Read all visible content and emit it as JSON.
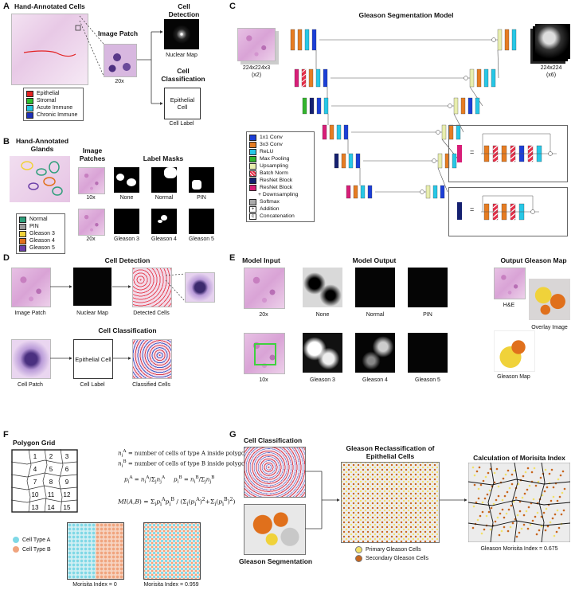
{
  "panels": {
    "A": {
      "label": "A",
      "title": "Hand-Annotated Cells",
      "legend": [
        {
          "name": "Epithelial",
          "color": "#e32222"
        },
        {
          "name": "Stromal",
          "color": "#2ec02e"
        },
        {
          "name": "Acute Immune",
          "color": "#25c7e0"
        },
        {
          "name": "Chronic Immune",
          "color": "#1e2fb8"
        }
      ],
      "image_patch_title": "Image Patch",
      "magnification": "20x",
      "cell_detection_title": "Cell Detection",
      "nuclear_map_label": "Nuclear Map",
      "cell_classification_title": "Cell Classification",
      "epithelial_cell_text": "Epithelial Cell",
      "cell_label": "Cell Label"
    },
    "B": {
      "label": "B",
      "title": "Hand-Annotated Glands",
      "legend": [
        {
          "name": "Normal",
          "color": "#2e9e7a"
        },
        {
          "name": "PIN",
          "color": "#9a9a9a"
        },
        {
          "name": "Gleason 3",
          "color": "#f0d23a"
        },
        {
          "name": "Gleason 4",
          "color": "#e0701c"
        },
        {
          "name": "Gleason 5",
          "color": "#6b3ea8"
        }
      ],
      "image_patches_title": "Image Patches",
      "label_masks_title": "Label Masks",
      "mag_10x": "10x",
      "mag_20x": "20x",
      "mask_labels": [
        "None",
        "Normal",
        "PIN",
        "Gleason 3",
        "Gleason 4",
        "Gleason 5"
      ]
    },
    "C": {
      "label": "C",
      "title": "Gleason Segmentation Model",
      "input_size": "224x224x3",
      "input_count": "(x2)",
      "output_size": "224x224",
      "output_count": "(x6)",
      "legend": [
        {
          "name": "1x1 Conv",
          "color": "#1c3fd6"
        },
        {
          "name": "3x3 Conv",
          "color": "#e67c22"
        },
        {
          "name": "ReLU",
          "color": "#27c7e6"
        },
        {
          "name": "Max Pooling",
          "color": "#33b52d"
        },
        {
          "name": "Upsampling",
          "color": "#e8eeae"
        },
        {
          "name": "Batch Norm",
          "color": "#e8304a"
        },
        {
          "name": "ResNet Block",
          "color": "#152070"
        },
        {
          "name": "ResNet Block",
          "color": "#d81e78"
        },
        {
          "name": "+ Downsampling",
          "color": ""
        },
        {
          "name": "Softmax",
          "color": "#aaaaaa"
        },
        {
          "name": "Addition",
          "color": ""
        },
        {
          "name": "Concatenation",
          "color": ""
        }
      ],
      "equals": "="
    },
    "D": {
      "label": "D",
      "cell_detection_title": "Cell Detection",
      "image_patch": "Image Patch",
      "nuclear_map": "Nuclear Map",
      "detected_cells": "Detected Cells",
      "cell_classification_title": "Cell Classification",
      "cell_patch": "Cell Patch",
      "epithelial_cell_text": "Epithelial Cell",
      "cell_label": "Cell Label",
      "classified_cells": "Classified Cells"
    },
    "E": {
      "label": "E",
      "model_input": "Model Input",
      "model_output": "Model Output",
      "output_gleason_map": "Output Gleason Map",
      "mag_20x": "20x",
      "mag_10x": "10x",
      "outputs": [
        "None",
        "Normal",
        "PIN",
        "Gleason 3",
        "Gleason 4",
        "Gleason 5"
      ],
      "he": "H&E",
      "overlay": "Overlay Image",
      "gleason_map": "Gleason Map"
    },
    "F": {
      "label": "F",
      "title": "Polygon Grid",
      "grid_numbers": [
        "1",
        "2",
        "3",
        "4",
        "5",
        "6",
        "7",
        "8",
        "9",
        "10",
        "11",
        "12",
        "13",
        "14",
        "15"
      ],
      "def_a": "= number of cells of type A inside polygon i",
      "def_b": "= number of cells of type B inside polygon i",
      "legend": [
        {
          "name": "Cell Type A",
          "color": "#7fd8e6"
        },
        {
          "name": "Cell Type B",
          "color": "#f0a47e"
        }
      ],
      "morisita_0": "Morisita Index = 0",
      "morisita_1": "Morisita Index = 0.959"
    },
    "G": {
      "label": "G",
      "cell_classification": "Cell Classification",
      "gleason_segmentation": "Gleason Segmentation",
      "reclass_title": "Gleason Reclassification of Epithelial Cells",
      "morisita_title": "Calculation of Morisita Index",
      "primary": "Primary Gleason Cells",
      "secondary": "Secondary Gleason Cells",
      "primary_color": "#f2e06a",
      "secondary_color": "#c8661e",
      "gleason_morisita": "Gleason Morisita Index = 0.675"
    }
  }
}
